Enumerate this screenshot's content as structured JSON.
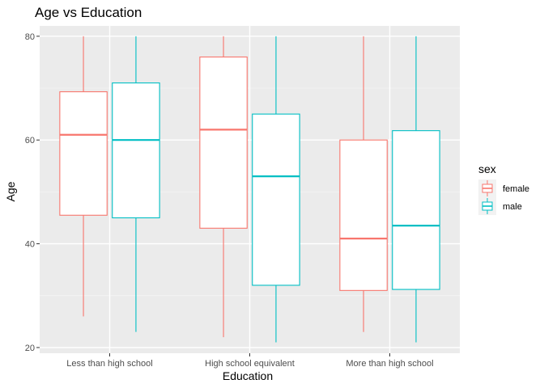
{
  "chart_data": {
    "type": "boxplot",
    "title": "Age vs Education",
    "xlabel": "Education",
    "ylabel": "Age",
    "categories": [
      "Less than high school",
      "High school equivalent",
      "More than high school"
    ],
    "ylim": [
      18.9,
      82
    ],
    "yticks": [
      20,
      40,
      60,
      80
    ],
    "grid": true,
    "legend": {
      "title": "sex",
      "position": "right"
    },
    "series": [
      {
        "name": "female",
        "color": "#F8766D",
        "boxes": [
          {
            "min": 26,
            "q1": 45.5,
            "median": 61,
            "q3": 69.3,
            "max": 80
          },
          {
            "min": 22,
            "q1": 43,
            "median": 62,
            "q3": 76,
            "max": 80
          },
          {
            "min": 23,
            "q1": 31,
            "median": 41,
            "q3": 60,
            "max": 80
          }
        ]
      },
      {
        "name": "male",
        "color": "#00BFC4",
        "boxes": [
          {
            "min": 23,
            "q1": 45,
            "median": 60,
            "q3": 71,
            "max": 80
          },
          {
            "min": 21,
            "q1": 32,
            "median": 53,
            "q3": 65,
            "max": 80
          },
          {
            "min": 21,
            "q1": 31.2,
            "median": 43.5,
            "q3": 61.8,
            "max": 80
          }
        ]
      }
    ]
  },
  "colors": {
    "panel_background": "#EBEBEB",
    "grid_major": "#FFFFFF",
    "grid_minor": "#F5F5F5",
    "box_fill": "#FFFFFF"
  }
}
